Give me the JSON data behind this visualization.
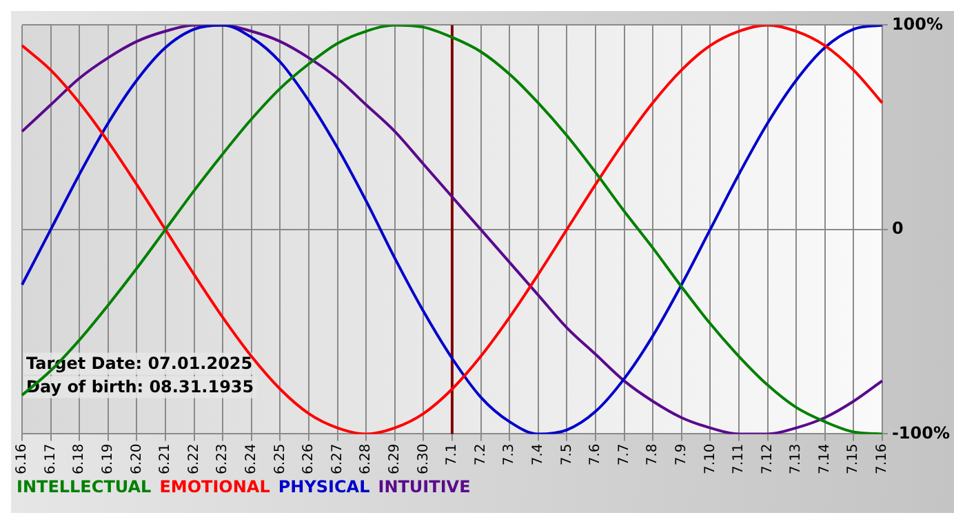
{
  "chart_data": {
    "type": "line",
    "categories": [
      "6.16",
      "6.17",
      "6.18",
      "6.19",
      "6.20",
      "6.21",
      "6.22",
      "6.23",
      "6.24",
      "6.25",
      "6.26",
      "6.27",
      "6.28",
      "6.29",
      "6.30",
      "7.1",
      "7.2",
      "7.3",
      "7.4",
      "7.5",
      "7.6",
      "7.7",
      "7.8",
      "7.9",
      "7.10",
      "7.11",
      "7.12",
      "7.13",
      "7.14",
      "7.15",
      "7.16"
    ],
    "series": [
      {
        "name": "INTELLECTUAL",
        "color": "#008000",
        "values": [
          -81,
          -69,
          -54,
          -37,
          -19,
          0,
          19,
          37,
          54,
          69,
          81,
          91,
          97,
          100,
          99,
          94,
          87,
          76,
          62,
          46,
          28,
          9,
          -9,
          -28,
          -46,
          -62,
          -76,
          -87,
          -94,
          -99,
          -100
        ]
      },
      {
        "name": "EMOTIONAL",
        "color": "#ff0000",
        "values": [
          90,
          78,
          62,
          43,
          22,
          0,
          -22,
          -43,
          -62,
          -78,
          -90,
          -97,
          -100,
          -97,
          -90,
          -78,
          -62,
          -43,
          -22,
          0,
          22,
          43,
          62,
          78,
          90,
          97,
          100,
          97,
          90,
          78,
          62
        ]
      },
      {
        "name": "PHYSICAL",
        "color": "#0000cc",
        "values": [
          -27,
          0,
          27,
          52,
          73,
          89,
          98,
          100,
          94,
          82,
          63,
          40,
          14,
          -14,
          -40,
          -63,
          -82,
          -94,
          -100,
          -98,
          -89,
          -73,
          -52,
          -27,
          0,
          27,
          52,
          73,
          89,
          98,
          100
        ]
      },
      {
        "name": "INTUITIVE",
        "color": "#5a0a8c",
        "values": [
          48,
          61,
          74,
          84,
          92,
          97,
          100,
          100,
          97,
          92,
          84,
          74,
          61,
          48,
          32,
          16,
          0,
          -16,
          -32,
          -48,
          -61,
          -74,
          -84,
          -92,
          -97,
          -100,
          -100,
          -97,
          -92,
          -84,
          -74
        ]
      }
    ],
    "ylim": [
      -100,
      100
    ],
    "yticks": [
      {
        "value": 100,
        "label": "100%"
      },
      0,
      {
        "value": -100,
        "label": "-100%"
      }
    ],
    "grid": true,
    "legend": "bottom left",
    "marker": "none",
    "line_style": "solid",
    "ref_lines": [
      {
        "axis": "x",
        "value": "7.1",
        "color": "#800000"
      }
    ],
    "annotations": [
      "Target Date: 07.01.2025",
      "Day of birth: 08.31.1935"
    ]
  }
}
